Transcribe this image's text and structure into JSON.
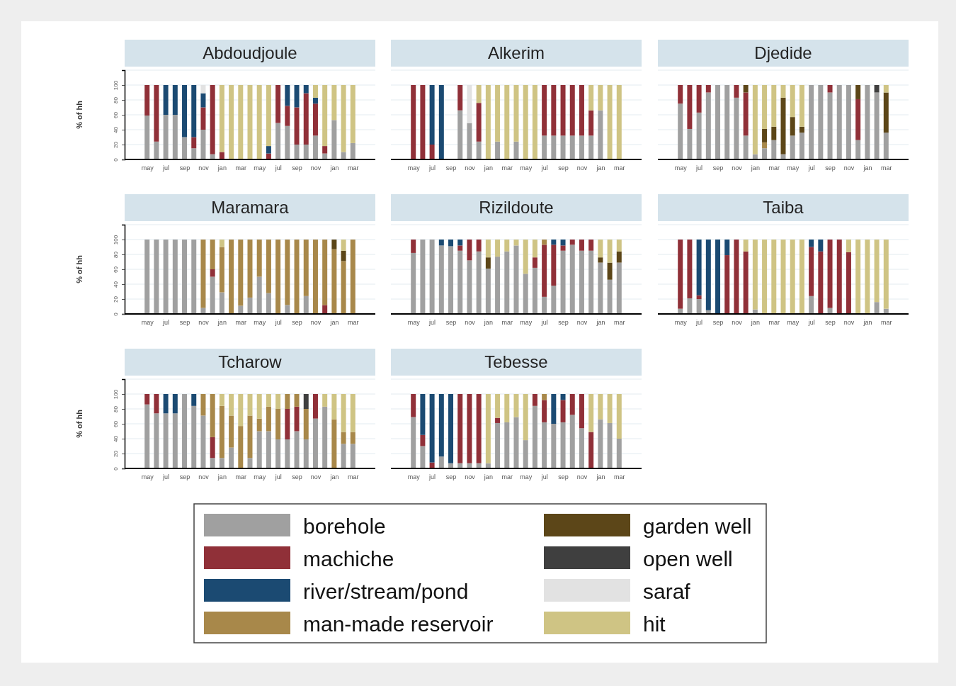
{
  "chart_data": [
    {
      "type": "bar",
      "stacked": true,
      "title": "Abdoudjoule",
      "ylabel": "% of hh",
      "categories": [
        "may",
        null,
        "jul",
        null,
        "sep",
        null,
        "nov",
        null,
        "jan",
        null,
        "mar",
        null,
        "may",
        null,
        "jul",
        null,
        "sep",
        null,
        "nov",
        null,
        "jan",
        null,
        "mar"
      ],
      "ylim": [
        0,
        120
      ],
      "yticks": [
        0,
        20,
        40,
        60,
        80,
        100
      ],
      "grid": "y",
      "series": [
        {
          "color": "#a0a0a0",
          "values": [
            59,
            24,
            60,
            60,
            30,
            15,
            40,
            7,
            0,
            0,
            0,
            0,
            0,
            0,
            49,
            45,
            20,
            20,
            32,
            8,
            53,
            10,
            22
          ]
        },
        {
          "color": "#903038",
          "values": [
            41,
            76,
            0,
            0,
            0,
            15,
            30,
            93,
            10,
            0,
            0,
            0,
            0,
            8,
            51,
            27,
            50,
            69,
            43,
            10,
            0,
            0,
            0
          ]
        },
        {
          "color": "#1b4a72",
          "values": [
            0,
            0,
            40,
            40,
            70,
            70,
            19,
            0,
            0,
            0,
            0,
            0,
            0,
            10,
            0,
            28,
            30,
            11,
            8,
            0,
            0,
            0,
            0
          ]
        },
        {
          "color": "#e2e2e2",
          "values": [
            0,
            0,
            0,
            0,
            0,
            0,
            11,
            0,
            0,
            0,
            0,
            0,
            0,
            0,
            0,
            0,
            0,
            0,
            0,
            0,
            0,
            0,
            0
          ]
        },
        {
          "color": "#cfc484",
          "values": [
            0,
            0,
            0,
            0,
            0,
            0,
            0,
            0,
            90,
            100,
            100,
            100,
            100,
            82,
            0,
            0,
            0,
            0,
            17,
            82,
            47,
            90,
            78
          ]
        }
      ]
    },
    {
      "type": "bar",
      "stacked": true,
      "title": "Alkerim",
      "tick_labels": "x",
      "categories": [
        "may",
        null,
        "jul",
        null,
        "sep",
        null,
        "nov",
        null,
        "jan",
        null,
        "mar",
        null,
        "may",
        null,
        "jul",
        null,
        "sep",
        null,
        "nov",
        null,
        "jan",
        null,
        "mar"
      ],
      "ylim": [
        0,
        120
      ],
      "yticks": [
        0,
        20,
        40,
        60,
        80,
        100
      ],
      "grid": "y",
      "series": [
        {
          "color": "#a0a0a0",
          "values": [
            0,
            0,
            0,
            0,
            0,
            66,
            49,
            24,
            0,
            24,
            0,
            24,
            0,
            0,
            32,
            32,
            32,
            32,
            32,
            32,
            66,
            0,
            0
          ]
        },
        {
          "color": "#903038",
          "values": [
            100,
            100,
            20,
            0,
            0,
            34,
            0,
            52,
            0,
            0,
            0,
            0,
            0,
            0,
            68,
            68,
            68,
            68,
            68,
            34,
            0,
            0,
            0
          ]
        },
        {
          "color": "#1b4a72",
          "values": [
            0,
            0,
            80,
            100,
            0,
            0,
            0,
            0,
            0,
            0,
            0,
            0,
            0,
            0,
            0,
            0,
            0,
            0,
            0,
            0,
            0,
            0,
            0
          ]
        },
        {
          "color": "#e2e2e2",
          "values": [
            0,
            0,
            0,
            0,
            0,
            0,
            51,
            0,
            0,
            0,
            0,
            0,
            0,
            0,
            0,
            0,
            0,
            0,
            0,
            0,
            0,
            0,
            0
          ]
        },
        {
          "color": "#cfc484",
          "values": [
            0,
            0,
            0,
            0,
            0,
            0,
            0,
            24,
            100,
            76,
            100,
            76,
            100,
            100,
            0,
            0,
            0,
            0,
            0,
            34,
            34,
            100,
            100
          ]
        }
      ]
    },
    {
      "type": "bar",
      "stacked": true,
      "title": "Djedide",
      "tick_labels": "x",
      "categories": [
        "may",
        null,
        "jul",
        null,
        "sep",
        null,
        "nov",
        null,
        "jan",
        null,
        "mar",
        null,
        "may",
        null,
        "jul",
        null,
        "sep",
        null,
        "nov",
        null,
        "jan",
        null,
        "mar"
      ],
      "ylim": [
        0,
        120
      ],
      "yticks": [
        0,
        20,
        40,
        60,
        80,
        100
      ],
      "grid": "y",
      "series": [
        {
          "color": "#a0a0a0",
          "values": [
            75,
            41,
            63,
            90,
            100,
            100,
            83,
            32,
            7,
            15,
            26,
            7,
            32,
            36,
            100,
            100,
            90,
            100,
            100,
            26,
            100,
            90,
            36
          ]
        },
        {
          "color": "#903038",
          "values": [
            25,
            59,
            37,
            10,
            0,
            0,
            17,
            58,
            0,
            0,
            0,
            0,
            0,
            0,
            0,
            0,
            10,
            0,
            0,
            55,
            0,
            0,
            0
          ]
        },
        {
          "color": "#a8884a",
          "values": [
            0,
            0,
            0,
            0,
            0,
            0,
            0,
            0,
            0,
            8,
            0,
            0,
            0,
            0,
            0,
            0,
            0,
            0,
            0,
            0,
            0,
            0,
            0
          ]
        },
        {
          "color": "#5c4618",
          "values": [
            0,
            0,
            0,
            0,
            0,
            0,
            0,
            10,
            0,
            18,
            18,
            76,
            25,
            8,
            0,
            0,
            0,
            0,
            0,
            19,
            0,
            0,
            54
          ]
        },
        {
          "color": "#3f3f3f",
          "values": [
            0,
            0,
            0,
            0,
            0,
            0,
            0,
            0,
            0,
            0,
            0,
            0,
            0,
            0,
            0,
            0,
            0,
            0,
            0,
            0,
            0,
            10,
            0
          ]
        },
        {
          "color": "#cfc484",
          "values": [
            0,
            0,
            0,
            0,
            0,
            0,
            0,
            0,
            93,
            59,
            56,
            17,
            43,
            56,
            0,
            0,
            0,
            0,
            0,
            0,
            0,
            0,
            10
          ]
        }
      ]
    },
    {
      "type": "bar",
      "stacked": true,
      "title": "Maramara",
      "ylabel": "% of hh",
      "categories": [
        "may",
        null,
        "jul",
        null,
        "sep",
        null,
        "nov",
        null,
        "jan",
        null,
        "mar",
        null,
        "may",
        null,
        "jul",
        null,
        "sep",
        null,
        "nov",
        null,
        "jan",
        null,
        "mar"
      ],
      "ylim": [
        0,
        120
      ],
      "yticks": [
        0,
        20,
        40,
        60,
        80,
        100
      ],
      "grid": "y",
      "series": [
        {
          "color": "#a0a0a0",
          "values": [
            100,
            100,
            100,
            100,
            100,
            100,
            8,
            50,
            29,
            0,
            11,
            22,
            50,
            28,
            0,
            12,
            0,
            24,
            0,
            0,
            0,
            0,
            0
          ]
        },
        {
          "color": "#903038",
          "values": [
            0,
            0,
            0,
            0,
            0,
            0,
            0,
            10,
            0,
            0,
            0,
            0,
            0,
            0,
            0,
            0,
            0,
            0,
            0,
            12,
            0,
            0,
            0
          ]
        },
        {
          "color": "#a8884a",
          "values": [
            0,
            0,
            0,
            0,
            0,
            0,
            92,
            40,
            61,
            100,
            89,
            78,
            50,
            72,
            100,
            88,
            100,
            76,
            100,
            88,
            87,
            71,
            100
          ]
        },
        {
          "color": "#5c4618",
          "values": [
            0,
            0,
            0,
            0,
            0,
            0,
            0,
            0,
            0,
            0,
            0,
            0,
            0,
            0,
            0,
            0,
            0,
            0,
            0,
            0,
            13,
            14,
            0
          ]
        },
        {
          "color": "#cfc484",
          "values": [
            0,
            0,
            0,
            0,
            0,
            0,
            0,
            0,
            10,
            0,
            0,
            0,
            0,
            0,
            0,
            0,
            0,
            0,
            0,
            0,
            0,
            15,
            0
          ]
        }
      ]
    },
    {
      "type": "bar",
      "stacked": true,
      "title": "Rizildoute",
      "tick_labels": "x",
      "categories": [
        "may",
        null,
        "jul",
        null,
        "sep",
        null,
        "nov",
        null,
        "jan",
        null,
        "mar",
        null,
        "may",
        null,
        "jul",
        null,
        "sep",
        null,
        "nov",
        null,
        "jan",
        null,
        "mar"
      ],
      "ylim": [
        0,
        120
      ],
      "yticks": [
        0,
        20,
        40,
        60,
        80,
        100
      ],
      "grid": "y",
      "series": [
        {
          "color": "#a0a0a0",
          "values": [
            82,
            100,
            100,
            92,
            91,
            85,
            72,
            84,
            61,
            77,
            84,
            92,
            54,
            62,
            23,
            38,
            85,
            93,
            85,
            85,
            69,
            46,
            69
          ]
        },
        {
          "color": "#903038",
          "values": [
            18,
            0,
            0,
            0,
            0,
            7,
            28,
            16,
            0,
            0,
            0,
            0,
            0,
            14,
            70,
            55,
            7,
            7,
            15,
            15,
            0,
            0,
            0
          ]
        },
        {
          "color": "#1b4a72",
          "values": [
            0,
            0,
            0,
            8,
            9,
            8,
            0,
            0,
            0,
            0,
            0,
            0,
            0,
            0,
            0,
            7,
            8,
            0,
            0,
            0,
            0,
            0,
            0
          ]
        },
        {
          "color": "#a8884a",
          "values": [
            0,
            0,
            0,
            0,
            0,
            0,
            0,
            0,
            0,
            0,
            0,
            0,
            0,
            0,
            7,
            0,
            0,
            0,
            0,
            0,
            0,
            0,
            0
          ]
        },
        {
          "color": "#5c4618",
          "values": [
            0,
            0,
            0,
            0,
            0,
            0,
            0,
            0,
            15,
            0,
            0,
            0,
            0,
            0,
            0,
            0,
            0,
            0,
            0,
            0,
            7,
            23,
            15
          ]
        },
        {
          "color": "#cfc484",
          "values": [
            0,
            0,
            0,
            0,
            0,
            0,
            0,
            0,
            24,
            23,
            16,
            8,
            46,
            24,
            0,
            0,
            0,
            0,
            0,
            0,
            24,
            31,
            16
          ]
        }
      ]
    },
    {
      "type": "bar",
      "stacked": true,
      "title": "Taiba",
      "tick_labels": "x",
      "categories": [
        "may",
        null,
        "jul",
        null,
        "sep",
        null,
        "nov",
        null,
        "jan",
        null,
        "mar",
        null,
        "may",
        null,
        "jul",
        null,
        "sep",
        null,
        "nov",
        null,
        "jan",
        null,
        "mar"
      ],
      "ylim": [
        0,
        120
      ],
      "yticks": [
        0,
        20,
        40,
        60,
        80,
        100
      ],
      "grid": "y",
      "series": [
        {
          "color": "#a0a0a0",
          "values": [
            7,
            21,
            20,
            5,
            0,
            0,
            0,
            0,
            6,
            0,
            0,
            0,
            0,
            0,
            24,
            0,
            8,
            0,
            0,
            0,
            0,
            16,
            7
          ]
        },
        {
          "color": "#903038",
          "values": [
            93,
            79,
            5,
            0,
            0,
            79,
            100,
            84,
            0,
            0,
            0,
            0,
            0,
            0,
            66,
            84,
            92,
            100,
            83,
            0,
            0,
            0,
            0
          ]
        },
        {
          "color": "#1b4a72",
          "values": [
            0,
            0,
            75,
            95,
            100,
            21,
            0,
            0,
            0,
            0,
            0,
            0,
            0,
            0,
            10,
            16,
            0,
            0,
            0,
            0,
            0,
            0,
            0
          ]
        },
        {
          "color": "#cfc484",
          "values": [
            0,
            0,
            0,
            0,
            0,
            0,
            0,
            16,
            94,
            100,
            100,
            100,
            100,
            100,
            0,
            0,
            0,
            0,
            17,
            100,
            100,
            84,
            93
          ]
        }
      ]
    },
    {
      "type": "bar",
      "stacked": true,
      "title": "Tcharow",
      "ylabel": "% of hh",
      "categories": [
        "may",
        null,
        "jul",
        null,
        "sep",
        null,
        "nov",
        null,
        "jan",
        null,
        "mar",
        null,
        "may",
        null,
        "jul",
        null,
        "sep",
        null,
        "nov",
        null,
        "jan",
        null,
        "mar"
      ],
      "ylim": [
        0,
        120
      ],
      "yticks": [
        0,
        20,
        40,
        60,
        80,
        100
      ],
      "grid": "y",
      "series": [
        {
          "color": "#a0a0a0",
          "values": [
            86,
            74,
            74,
            74,
            100,
            84,
            71,
            14,
            14,
            28,
            0,
            14,
            50,
            50,
            39,
            39,
            50,
            39,
            67,
            83,
            0,
            33,
            33
          ]
        },
        {
          "color": "#903038",
          "values": [
            14,
            26,
            0,
            0,
            0,
            0,
            0,
            28,
            0,
            0,
            0,
            0,
            0,
            0,
            0,
            41,
            33,
            0,
            33,
            0,
            0,
            0,
            0
          ]
        },
        {
          "color": "#1b4a72",
          "values": [
            0,
            0,
            26,
            26,
            0,
            16,
            0,
            0,
            0,
            0,
            0,
            0,
            0,
            0,
            0,
            0,
            0,
            0,
            0,
            0,
            0,
            0,
            0
          ]
        },
        {
          "color": "#a8884a",
          "values": [
            0,
            0,
            0,
            0,
            0,
            0,
            29,
            58,
            70,
            43,
            57,
            57,
            17,
            33,
            41,
            20,
            17,
            41,
            0,
            0,
            66,
            16,
            16
          ]
        },
        {
          "color": "#3f3f3f",
          "values": [
            0,
            0,
            0,
            0,
            0,
            0,
            0,
            0,
            0,
            0,
            0,
            0,
            0,
            0,
            0,
            0,
            0,
            20,
            0,
            0,
            0,
            0,
            0
          ]
        },
        {
          "color": "#cfc484",
          "values": [
            0,
            0,
            0,
            0,
            0,
            0,
            0,
            0,
            16,
            29,
            43,
            29,
            33,
            17,
            20,
            0,
            0,
            0,
            0,
            17,
            34,
            51,
            51
          ]
        }
      ]
    },
    {
      "type": "bar",
      "stacked": true,
      "title": "Tebesse",
      "tick_labels": "x",
      "legend": "bottom",
      "categories": [
        "may",
        null,
        "jul",
        null,
        "sep",
        null,
        "nov",
        null,
        "jan",
        null,
        "mar",
        null,
        "may",
        null,
        "jul",
        null,
        "sep",
        null,
        "nov",
        null,
        "jan",
        null,
        "mar"
      ],
      "ylim": [
        0,
        120
      ],
      "yticks": [
        0,
        20,
        40,
        60,
        80,
        100
      ],
      "grid": "y",
      "series": [
        {
          "name": "borehole",
          "color": "#a0a0a0",
          "values": [
            69,
            30,
            0,
            16,
            7,
            7,
            7,
            7,
            7,
            61,
            62,
            69,
            38,
            84,
            62,
            60,
            62,
            72,
            54,
            0,
            66,
            61,
            40
          ]
        },
        {
          "name": "machiche",
          "color": "#903038",
          "values": [
            31,
            15,
            8,
            0,
            0,
            93,
            93,
            93,
            0,
            7,
            0,
            0,
            0,
            16,
            30,
            0,
            30,
            28,
            46,
            49,
            0,
            0,
            0
          ]
        },
        {
          "name": "river/stream/pond",
          "color": "#1b4a72",
          "values": [
            0,
            55,
            92,
            84,
            93,
            0,
            0,
            0,
            0,
            0,
            0,
            0,
            0,
            0,
            0,
            40,
            8,
            0,
            0,
            0,
            0,
            0,
            0
          ]
        },
        {
          "name": "man-made reservoir",
          "color": "#a8884a",
          "values": [
            0,
            0,
            0,
            0,
            0,
            0,
            0,
            0,
            0,
            0,
            0,
            0,
            0,
            0,
            8,
            0,
            0,
            0,
            0,
            0,
            0,
            0,
            0
          ]
        },
        {
          "name": "garden well",
          "color": "#5c4618",
          "values": [
            0,
            0,
            0,
            0,
            0,
            0,
            0,
            0,
            0,
            0,
            0,
            0,
            0,
            0,
            0,
            0,
            0,
            0,
            0,
            0,
            0,
            0,
            0
          ]
        },
        {
          "name": "open well",
          "color": "#3f3f3f",
          "values": [
            0,
            0,
            0,
            0,
            0,
            0,
            0,
            0,
            0,
            0,
            0,
            0,
            0,
            0,
            0,
            0,
            0,
            0,
            0,
            0,
            0,
            0,
            0
          ]
        },
        {
          "name": "saraf",
          "color": "#e2e2e2",
          "values": [
            0,
            0,
            0,
            0,
            0,
            0,
            0,
            0,
            0,
            0,
            0,
            0,
            0,
            0,
            0,
            0,
            0,
            0,
            0,
            0,
            0,
            0,
            0
          ]
        },
        {
          "name": "hit",
          "color": "#cfc484",
          "values": [
            0,
            0,
            0,
            0,
            0,
            0,
            0,
            0,
            93,
            32,
            38,
            31,
            62,
            0,
            0,
            0,
            0,
            0,
            0,
            51,
            34,
            39,
            60
          ]
        }
      ]
    }
  ]
}
